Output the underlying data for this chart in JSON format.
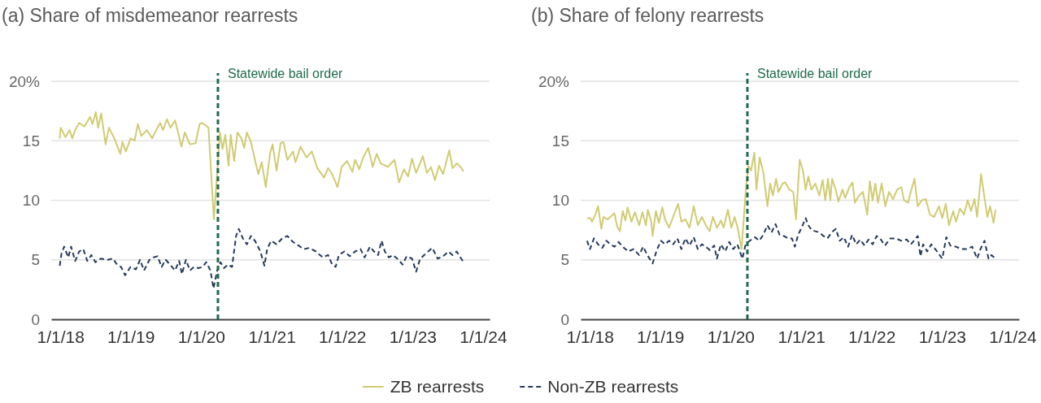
{
  "chart_data": [
    {
      "type": "line",
      "title": "(a) Share of misdemeanor rearrests",
      "xlim": [
        "2017-11-15",
        "2024-02-04"
      ],
      "xticks": [
        {
          "value": "2018-01-01",
          "label": "1/1/18"
        },
        {
          "value": "2019-01-01",
          "label": "1/1/19"
        },
        {
          "value": "2020-01-01",
          "label": "1/1/20"
        },
        {
          "value": "2021-01-01",
          "label": "1/1/21"
        },
        {
          "value": "2022-01-01",
          "label": "1/1/22"
        },
        {
          "value": "2023-01-01",
          "label": "1/1/23"
        },
        {
          "value": "2024-01-01",
          "label": "1/1/24"
        }
      ],
      "ylim": [
        0,
        20
      ],
      "yticks": [
        0,
        5,
        10,
        15,
        {
          "value": 20,
          "label": "20%"
        }
      ],
      "grid": "y",
      "legend": "bottom",
      "ref_lines": [
        {
          "axis": "x",
          "value": "2020-03-28",
          "label": "Statewide bail order",
          "color": "#1e6b4a",
          "line_style": "dashed"
        }
      ],
      "series": [
        {
          "name": "ZB rearrests",
          "color": "#d1cb74",
          "line_style": "solid",
          "x": [
            "2017-12-29",
            "2018-01-03",
            "2018-01-28",
            "2018-02-18",
            "2018-03-04",
            "2018-03-19",
            "2018-04-09",
            "2018-05-06",
            "2018-06-04",
            "2018-06-17",
            "2018-07-04",
            "2018-07-16",
            "2018-08-01",
            "2018-08-24",
            "2018-09-10",
            "2018-10-08",
            "2018-11-08",
            "2018-11-19",
            "2018-12-07",
            "2018-12-31",
            "2019-01-21",
            "2019-02-07",
            "2019-02-25",
            "2019-03-25",
            "2019-04-22",
            "2019-05-13",
            "2019-06-03",
            "2019-06-17",
            "2019-07-08",
            "2019-07-26",
            "2019-08-19",
            "2019-09-21",
            "2019-10-08",
            "2019-11-04",
            "2019-12-03",
            "2019-12-24",
            "2020-01-07",
            "2020-02-08",
            "2020-03-07",
            "2020-03-24",
            "2020-04-07",
            "2020-04-21",
            "2020-05-05",
            "2020-05-22",
            "2020-06-02",
            "2020-06-20",
            "2020-07-07",
            "2020-07-28",
            "2020-08-11",
            "2020-08-25",
            "2020-09-15",
            "2020-10-06",
            "2020-10-23",
            "2020-11-10",
            "2020-12-01",
            "2020-12-23",
            "2021-01-05",
            "2021-01-26",
            "2021-02-16",
            "2021-03-02",
            "2021-03-23",
            "2021-04-21",
            "2021-05-04",
            "2021-05-30",
            "2021-06-30",
            "2021-07-28",
            "2021-08-25",
            "2021-09-29",
            "2021-10-20",
            "2021-11-10",
            "2021-12-08",
            "2021-12-29",
            "2022-01-26",
            "2022-02-23",
            "2022-03-09",
            "2022-03-30",
            "2022-04-20",
            "2022-05-16",
            "2022-06-08",
            "2022-06-29",
            "2022-07-20",
            "2022-08-25",
            "2022-09-29",
            "2022-10-23",
            "2022-11-17",
            "2022-12-08",
            "2022-12-29",
            "2023-01-19",
            "2023-02-23",
            "2023-03-16",
            "2023-04-06",
            "2023-04-27",
            "2023-05-18",
            "2023-06-08",
            "2023-07-10",
            "2023-07-27",
            "2023-08-17",
            "2023-09-07",
            "2023-09-21"
          ],
          "values": [
            15.2,
            16.1,
            15.3,
            15.9,
            15.2,
            15.9,
            16.5,
            16.2,
            17.0,
            16.4,
            17.4,
            16.1,
            17.3,
            14.7,
            16.1,
            15.2,
            13.9,
            14.9,
            14.1,
            15.2,
            15.0,
            16.4,
            15.4,
            15.9,
            15.2,
            15.9,
            16.5,
            15.9,
            16.8,
            16.1,
            16.7,
            14.5,
            15.7,
            14.7,
            14.8,
            16.4,
            16.5,
            16.1,
            8.4,
            12.3,
            15.7,
            14.3,
            15.5,
            12.9,
            15.5,
            13.3,
            15.7,
            15.2,
            14.4,
            15.7,
            14.9,
            13.4,
            12.2,
            13.2,
            11.1,
            13.9,
            14.7,
            12.5,
            14.8,
            14.9,
            13.4,
            14.1,
            13.2,
            14.5,
            13.6,
            14.1,
            12.7,
            11.9,
            12.7,
            12.2,
            11.1,
            12.8,
            13.3,
            12.4,
            13.4,
            12.6,
            13.6,
            14.4,
            12.8,
            13.9,
            13.1,
            12.8,
            13.4,
            11.5,
            12.6,
            12.0,
            13.5,
            12.3,
            13.7,
            12.3,
            12.8,
            11.7,
            12.9,
            12.2,
            14.2,
            12.7,
            13.1,
            12.8,
            12.4
          ]
        },
        {
          "name": "Non-ZB rearrests",
          "color": "#253a5a",
          "line_style": "dashed",
          "x": [
            "2017-12-29",
            "2018-01-07",
            "2018-01-21",
            "2018-02-11",
            "2018-02-26",
            "2018-03-19",
            "2018-04-09",
            "2018-04-30",
            "2018-05-21",
            "2018-06-11",
            "2018-07-02",
            "2018-07-30",
            "2018-09-03",
            "2018-10-01",
            "2018-10-22",
            "2018-11-12",
            "2018-12-03",
            "2018-12-31",
            "2019-01-28",
            "2019-02-18",
            "2019-03-11",
            "2019-04-08",
            "2019-04-29",
            "2019-05-20",
            "2019-06-10",
            "2019-07-01",
            "2019-07-29",
            "2019-08-19",
            "2019-09-09",
            "2019-09-23",
            "2019-10-14",
            "2019-11-04",
            "2019-11-25",
            "2019-12-17",
            "2020-01-07",
            "2020-01-28",
            "2020-02-18",
            "2020-03-05",
            "2020-03-24",
            "2020-04-10",
            "2020-04-28",
            "2020-05-19",
            "2020-06-09",
            "2020-06-30",
            "2020-07-14",
            "2020-08-04",
            "2020-08-25",
            "2020-09-15",
            "2020-10-06",
            "2020-11-03",
            "2020-11-24",
            "2020-12-08",
            "2020-12-29",
            "2021-01-26",
            "2021-02-24",
            "2021-03-23",
            "2021-04-21",
            "2021-05-19",
            "2021-06-16",
            "2021-07-14",
            "2021-08-18",
            "2021-09-22",
            "2021-10-20",
            "2021-11-10",
            "2021-11-28",
            "2021-12-15",
            "2022-01-12",
            "2022-02-09",
            "2022-03-09",
            "2022-04-06",
            "2022-04-27",
            "2022-05-25",
            "2022-06-15",
            "2022-07-06",
            "2022-07-24",
            "2022-08-10",
            "2022-08-31",
            "2022-09-21",
            "2022-10-20",
            "2022-11-10",
            "2022-12-01",
            "2022-12-29",
            "2023-01-19",
            "2023-02-09",
            "2023-03-02",
            "2023-03-23",
            "2023-04-13",
            "2023-05-11",
            "2023-06-08",
            "2023-07-06",
            "2023-07-27",
            "2023-08-17",
            "2023-09-18"
          ],
          "values": [
            4.5,
            5.5,
            6.1,
            5.2,
            6.1,
            4.9,
            5.7,
            5.9,
            4.9,
            5.4,
            4.8,
            5.1,
            5.0,
            5.1,
            4.6,
            4.4,
            3.7,
            4.4,
            4.2,
            5.0,
            4.1,
            5.0,
            5.2,
            5.3,
            4.4,
            5.0,
            4.5,
            4.1,
            4.9,
            3.8,
            5.0,
            4.1,
            4.4,
            4.3,
            4.4,
            4.8,
            4.1,
            2.6,
            4.1,
            4.8,
            4.3,
            4.6,
            4.4,
            7.0,
            7.6,
            6.8,
            6.3,
            7.0,
            6.6,
            5.7,
            4.5,
            5.9,
            6.6,
            6.3,
            6.8,
            7.0,
            6.5,
            6.2,
            5.9,
            6.0,
            5.7,
            5.2,
            5.4,
            4.6,
            4.4,
            5.4,
            5.7,
            5.3,
            5.7,
            5.9,
            5.2,
            6.1,
            5.7,
            5.4,
            6.6,
            5.7,
            5.2,
            5.4,
            5.0,
            4.6,
            5.3,
            5.1,
            4.0,
            5.1,
            5.4,
            5.7,
            6.0,
            5.1,
            5.3,
            5.7,
            5.4,
            5.7,
            4.9
          ]
        }
      ]
    },
    {
      "type": "line",
      "title": "(b) Share of felony rearrests",
      "xlim": [
        "2017-11-15",
        "2024-02-04"
      ],
      "xticks": [
        {
          "value": "2018-01-01",
          "label": "1/1/18"
        },
        {
          "value": "2019-01-01",
          "label": "1/1/19"
        },
        {
          "value": "2020-01-01",
          "label": "1/1/20"
        },
        {
          "value": "2021-01-01",
          "label": "1/1/21"
        },
        {
          "value": "2022-01-01",
          "label": "1/1/22"
        },
        {
          "value": "2023-01-01",
          "label": "1/1/23"
        },
        {
          "value": "2024-01-01",
          "label": "1/1/24"
        }
      ],
      "ylim": [
        0,
        20
      ],
      "yticks": [
        0,
        5,
        10,
        15,
        {
          "value": 20,
          "label": "20%"
        }
      ],
      "grid": "y",
      "ref_lines": [
        {
          "axis": "x",
          "value": "2020-03-28",
          "label": "Statewide bail order",
          "color": "#1e6b4a",
          "line_style": "dashed"
        }
      ],
      "series": [
        {
          "color": "#d1cb74",
          "line_style": "solid",
          "x": [
            "2017-12-18",
            "2018-01-04",
            "2018-01-13",
            "2018-01-30",
            "2018-02-13",
            "2018-03-02",
            "2018-03-13",
            "2018-04-04",
            "2018-04-25",
            "2018-05-09",
            "2018-05-23",
            "2018-06-06",
            "2018-06-21",
            "2018-07-05",
            "2018-07-16",
            "2018-08-05",
            "2018-08-23",
            "2018-09-14",
            "2018-10-01",
            "2018-10-19",
            "2018-10-29",
            "2018-11-16",
            "2018-11-23",
            "2018-12-10",
            "2018-12-25",
            "2019-01-12",
            "2019-01-26",
            "2019-02-16",
            "2019-03-09",
            "2019-04-04",
            "2019-04-21",
            "2019-05-12",
            "2019-06-02",
            "2019-06-24",
            "2019-07-15",
            "2019-08-05",
            "2019-08-26",
            "2019-09-14",
            "2019-10-01",
            "2019-10-22",
            "2019-11-12",
            "2019-11-26",
            "2019-12-18",
            "2020-01-05",
            "2020-01-22",
            "2020-02-05",
            "2020-02-27",
            "2020-03-19",
            "2020-04-02",
            "2020-04-16",
            "2020-05-03",
            "2020-05-14",
            "2020-05-31",
            "2020-06-19",
            "2020-07-10",
            "2020-07-24",
            "2020-08-07",
            "2020-08-24",
            "2020-09-05",
            "2020-09-26",
            "2020-10-10",
            "2020-10-31",
            "2020-11-21",
            "2020-12-05",
            "2020-12-24",
            "2021-01-10",
            "2021-01-24",
            "2021-02-07",
            "2021-02-22",
            "2021-03-15",
            "2021-04-05",
            "2021-04-22",
            "2021-05-06",
            "2021-05-20",
            "2021-06-01",
            "2021-06-10",
            "2021-06-29",
            "2021-07-13",
            "2021-08-03",
            "2021-08-17",
            "2021-09-07",
            "2021-09-24",
            "2021-10-06",
            "2021-10-27",
            "2021-11-17",
            "2021-12-09",
            "2021-12-23",
            "2022-01-06",
            "2022-01-20",
            "2022-02-03",
            "2022-02-22",
            "2022-03-13",
            "2022-04-01",
            "2022-04-22",
            "2022-05-13",
            "2022-06-04",
            "2022-06-18",
            "2022-07-09",
            "2022-07-23",
            "2022-08-11",
            "2022-08-28",
            "2022-09-18",
            "2022-10-09",
            "2022-10-30",
            "2022-11-21",
            "2022-12-16",
            "2023-01-02",
            "2023-01-20",
            "2023-02-06",
            "2023-02-28",
            "2023-03-14",
            "2023-04-04",
            "2023-04-25",
            "2023-05-14",
            "2023-05-31",
            "2023-06-18",
            "2023-07-02",
            "2023-07-22",
            "2023-08-09",
            "2023-08-24",
            "2023-09-07",
            "2023-09-25",
            "2023-10-05"
          ],
          "values": [
            8.5,
            8.5,
            8.2,
            8.8,
            9.5,
            7.6,
            8.6,
            8.4,
            8.7,
            8.9,
            7.8,
            7.4,
            9.1,
            8.3,
            9.4,
            8.2,
            9.0,
            7.9,
            9.0,
            7.9,
            9.2,
            8.2,
            7.0,
            9.1,
            8.1,
            9.4,
            8.4,
            7.7,
            8.6,
            9.7,
            8.2,
            8.4,
            7.7,
            9.5,
            7.9,
            8.6,
            7.9,
            7.4,
            8.6,
            7.7,
            8.3,
            7.7,
            9.2,
            7.7,
            8.6,
            7.8,
            5.9,
            10.7,
            12.9,
            12.5,
            14.0,
            10.9,
            13.6,
            12.3,
            9.5,
            11.4,
            10.4,
            11.8,
            10.7,
            11.4,
            11.5,
            10.9,
            10.7,
            8.4,
            13.4,
            12.5,
            10.9,
            12.0,
            10.9,
            11.4,
            10.4,
            11.7,
            10.0,
            11.8,
            10.0,
            11.8,
            10.9,
            9.9,
            10.9,
            10.2,
            11.1,
            11.5,
            9.8,
            10.4,
            10.7,
            8.8,
            11.6,
            10.0,
            11.4,
            9.8,
            11.4,
            9.5,
            10.7,
            10.1,
            10.9,
            11.1,
            10.0,
            9.8,
            10.7,
            11.8,
            9.5,
            10.0,
            10.1,
            8.8,
            8.6,
            9.5,
            8.5,
            9.7,
            7.9,
            9.1,
            8.2,
            9.3,
            8.8,
            10.0,
            9.1,
            10.1,
            8.6,
            12.2,
            10.2,
            8.6,
            9.5,
            8.1,
            9.2
          ]
        },
        {
          "color": "#253a5a",
          "line_style": "dashed",
          "x": [
            "2017-12-18",
            "2018-01-02",
            "2018-01-23",
            "2018-02-13",
            "2018-03-07",
            "2018-03-28",
            "2018-04-18",
            "2018-05-09",
            "2018-05-30",
            "2018-06-21",
            "2018-07-19",
            "2018-08-16",
            "2018-09-14",
            "2018-10-05",
            "2018-10-26",
            "2018-11-23",
            "2018-12-14",
            "2019-01-05",
            "2019-01-26",
            "2019-02-16",
            "2019-03-09",
            "2019-03-31",
            "2019-04-21",
            "2019-05-12",
            "2019-06-02",
            "2019-06-24",
            "2019-07-15",
            "2019-08-05",
            "2019-08-26",
            "2019-09-16",
            "2019-10-08",
            "2019-10-22",
            "2019-11-12",
            "2019-12-04",
            "2019-12-25",
            "2020-01-15",
            "2020-02-05",
            "2020-03-02",
            "2020-03-19",
            "2020-04-09",
            "2020-05-07",
            "2020-05-28",
            "2020-06-19",
            "2020-07-10",
            "2020-07-31",
            "2020-08-21",
            "2020-09-11",
            "2020-10-03",
            "2020-10-24",
            "2020-11-14",
            "2020-11-29",
            "2020-12-16",
            "2021-01-03",
            "2021-01-24",
            "2021-02-07",
            "2021-02-24",
            "2021-03-15",
            "2021-04-05",
            "2021-04-26",
            "2021-05-17",
            "2021-06-08",
            "2021-06-29",
            "2021-07-20",
            "2021-08-10",
            "2021-09-01",
            "2021-09-22",
            "2021-10-13",
            "2021-11-03",
            "2021-11-25",
            "2021-12-16",
            "2022-01-06",
            "2022-01-27",
            "2022-02-18",
            "2022-03-11",
            "2022-04-08",
            "2022-05-06",
            "2022-06-04",
            "2022-07-02",
            "2022-07-23",
            "2022-08-13",
            "2022-08-28",
            "2022-09-11",
            "2022-09-25",
            "2022-10-16",
            "2022-11-06",
            "2022-11-27",
            "2022-12-19",
            "2023-01-02",
            "2023-01-23",
            "2023-02-13",
            "2023-03-14",
            "2023-04-11",
            "2023-05-09",
            "2023-06-06",
            "2023-07-02",
            "2023-07-19",
            "2023-08-09",
            "2023-08-30",
            "2023-09-14",
            "2023-09-28"
          ],
          "values": [
            6.6,
            5.9,
            6.8,
            6.3,
            6.0,
            6.6,
            6.3,
            6.1,
            6.5,
            6.1,
            5.7,
            5.9,
            5.4,
            6.1,
            5.4,
            4.7,
            5.8,
            6.6,
            6.3,
            6.6,
            6.3,
            6.8,
            5.9,
            6.8,
            6.2,
            6.9,
            5.9,
            6.3,
            6.1,
            5.8,
            6.2,
            5.1,
            6.3,
            5.7,
            6.5,
            5.9,
            6.3,
            5.1,
            6.3,
            6.6,
            6.9,
            6.6,
            7.1,
            7.9,
            7.3,
            8.0,
            7.1,
            7.0,
            6.8,
            6.8,
            6.1,
            7.1,
            7.7,
            8.5,
            7.9,
            7.5,
            7.4,
            7.3,
            7.0,
            6.8,
            7.3,
            7.6,
            6.6,
            6.9,
            6.1,
            7.1,
            6.3,
            6.7,
            6.2,
            6.7,
            6.3,
            7.0,
            6.7,
            6.2,
            6.8,
            6.8,
            6.6,
            6.7,
            6.3,
            6.7,
            7.0,
            5.3,
            6.3,
            5.7,
            6.3,
            5.9,
            5.4,
            5.1,
            6.9,
            6.2,
            6.1,
            5.9,
            5.9,
            6.1,
            5.1,
            5.9,
            6.6,
            5.1,
            5.4,
            5.2
          ]
        }
      ]
    }
  ]
}
